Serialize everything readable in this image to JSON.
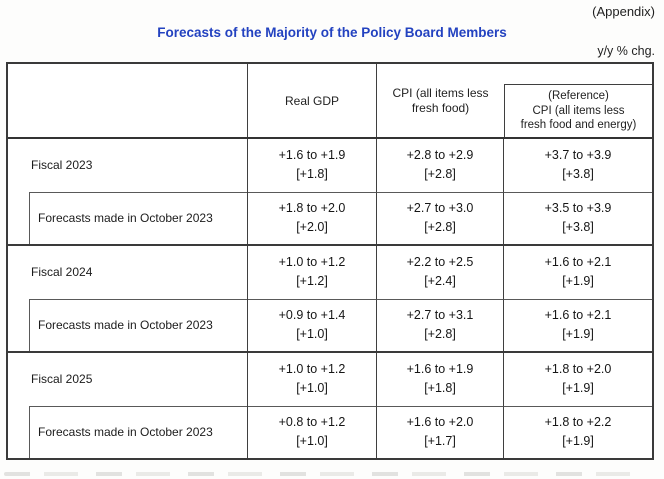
{
  "page": {
    "appendix_label": "(Appendix)",
    "title": "Forecasts of the Majority of the Policy Board Members",
    "unit_note": "y/y % chg."
  },
  "colors": {
    "title_blue": "#2342c0",
    "border_dark": "#3a3a3a",
    "border_thin": "#595959",
    "text": "#1c1c1c",
    "background": "#fdfdfc"
  },
  "table": {
    "header": {
      "corner": "",
      "real_gdp": "Real GDP",
      "cpi": "CPI (all items less\nfresh food)",
      "reference": "(Reference)\nCPI (all items less\nfresh food and energy)"
    },
    "rows": [
      {
        "kind": "fiscal",
        "label": "Fiscal 2023",
        "values": [
          {
            "range": "+1.6 to +1.9",
            "point": "[+1.8]"
          },
          {
            "range": "+2.8 to +2.9",
            "point": "[+2.8]"
          },
          {
            "range": "+3.7 to +3.9",
            "point": "[+3.8]"
          }
        ]
      },
      {
        "kind": "october",
        "label": "Forecasts made in October 2023",
        "values": [
          {
            "range": "+1.8 to +2.0",
            "point": "[+2.0]"
          },
          {
            "range": "+2.7 to +3.0",
            "point": "[+2.8]"
          },
          {
            "range": "+3.5 to +3.9",
            "point": "[+3.8]"
          }
        ]
      },
      {
        "kind": "fiscal",
        "label": "Fiscal 2024",
        "values": [
          {
            "range": "+1.0 to +1.2",
            "point": "[+1.2]"
          },
          {
            "range": "+2.2 to +2.5",
            "point": "[+2.4]"
          },
          {
            "range": "+1.6 to +2.1",
            "point": "[+1.9]"
          }
        ]
      },
      {
        "kind": "october",
        "label": "Forecasts made in October 2023",
        "values": [
          {
            "range": "+0.9 to +1.4",
            "point": "[+1.0]"
          },
          {
            "range": "+2.7 to +3.1",
            "point": "[+2.8]"
          },
          {
            "range": "+1.6 to +2.1",
            "point": "[+1.9]"
          }
        ]
      },
      {
        "kind": "fiscal",
        "label": "Fiscal 2025",
        "values": [
          {
            "range": "+1.0 to +1.2",
            "point": "[+1.0]"
          },
          {
            "range": "+1.6 to +1.9",
            "point": "[+1.8]"
          },
          {
            "range": "+1.8 to +2.0",
            "point": "[+1.9]"
          }
        ]
      },
      {
        "kind": "october",
        "label": "Forecasts made in October 2023",
        "values": [
          {
            "range": "+0.8 to +1.2",
            "point": "[+1.0]"
          },
          {
            "range": "+1.6 to +2.0",
            "point": "[+1.7]"
          },
          {
            "range": "+1.8 to +2.2",
            "point": "[+1.9]"
          }
        ]
      }
    ]
  }
}
